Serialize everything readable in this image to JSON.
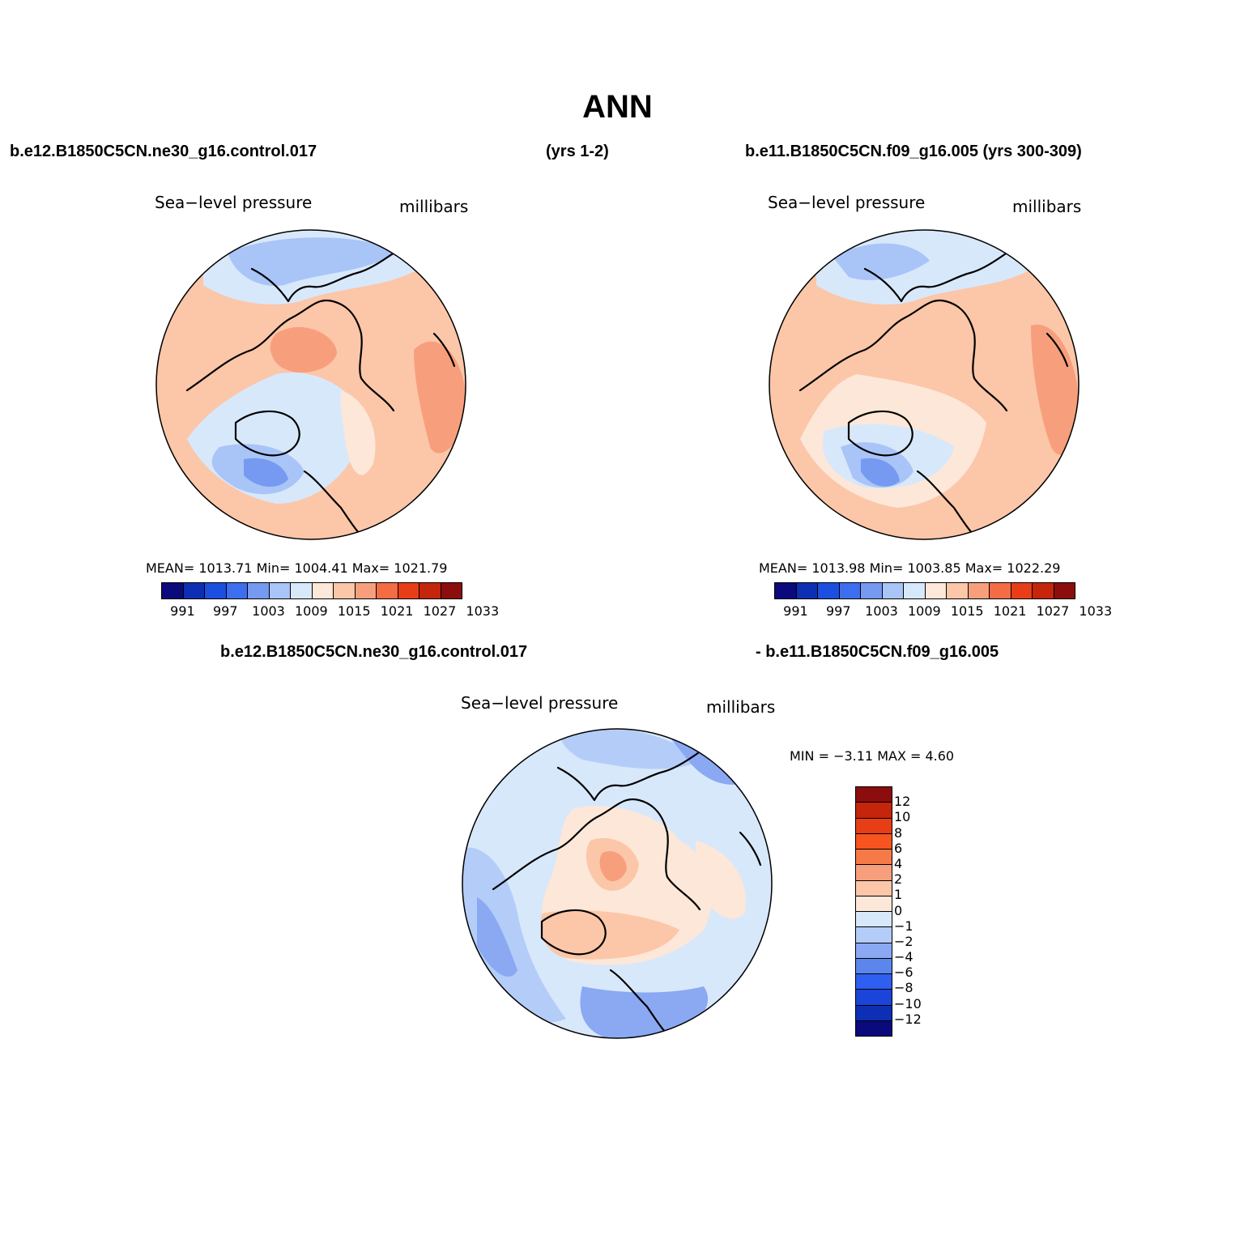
{
  "title": "ANN",
  "header": {
    "left_case": "b.e12.B1850C5CN.ne30_g16.control.017",
    "left_years": "(yrs 1-2)",
    "right_case": "b.e11.B1850C5CN.f09_g16.005 (yrs 300-309)"
  },
  "diff_header": {
    "left": "b.e12.B1850C5CN.ne30_g16.control.017",
    "right": "- b.e11.B1850C5CN.f09_g16.005"
  },
  "panels": [
    {
      "variable": "Sea−level pressure",
      "units": "millibars",
      "stats": "MEAN=  1013.71   Min=  1004.41   Max=  1021.79",
      "mean": 1013.71,
      "min": 1004.41,
      "max": 1021.79
    },
    {
      "variable": "Sea−level pressure",
      "units": "millibars",
      "stats": "MEAN=  1013.98   Min=  1003.85   Max=  1022.29",
      "mean": 1013.98,
      "min": 1003.85,
      "max": 1022.29
    },
    {
      "variable": "Sea−level pressure",
      "units": "millibars",
      "stats": "MIN =    −3.11  MAX =     4.60",
      "min": -3.11,
      "max": 4.6
    }
  ],
  "colorbar_abs": {
    "colors": [
      "#0a0a7d",
      "#0d2fb4",
      "#1a4fe0",
      "#3d6ef0",
      "#7699f2",
      "#a9c4f7",
      "#d8e8fb",
      "#fde7d8",
      "#fcc6a9",
      "#f79f7c",
      "#f36c43",
      "#e83e17",
      "#c4250b",
      "#8c0d0d"
    ],
    "labels": [
      "991",
      "997",
      "1003",
      "1009",
      "1015",
      "1021",
      "1027",
      "1033"
    ]
  },
  "colorbar_diff": {
    "colors_top_to_bottom": [
      "#8c0d0d",
      "#c4250b",
      "#e83e17",
      "#f7541f",
      "#f67a47",
      "#f79f7c",
      "#fcc6a9",
      "#fde7d8",
      "#d8e8fb",
      "#b4ccf8",
      "#8aa9f2",
      "#5c86ee",
      "#2f5ff0",
      "#1a45d8",
      "#0d2fb4",
      "#0a0a7d"
    ],
    "labels": [
      "12",
      "10",
      "8",
      "6",
      "4",
      "2",
      "1",
      "0",
      "−1",
      "−2",
      "−4",
      "−6",
      "−8",
      "−10",
      "−12"
    ]
  }
}
